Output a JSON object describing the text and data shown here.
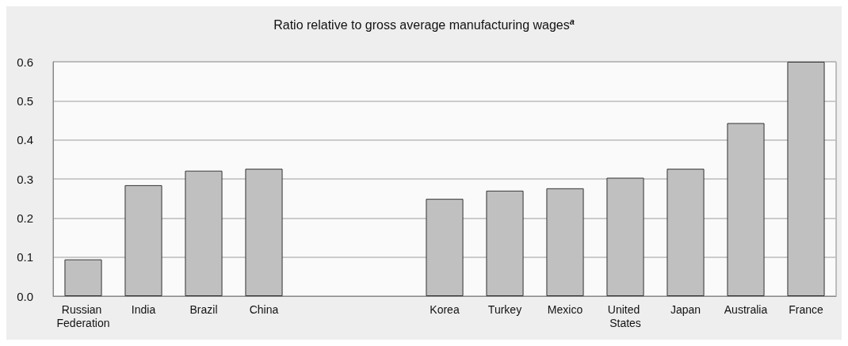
{
  "chart_data": {
    "type": "bar",
    "title": "Ratio relative to gross average manufacturing wages$^{a}$",
    "categories": [
      "Russian Federation",
      "India",
      "Brazil",
      "China",
      null,
      null,
      "Korea",
      "Turkey",
      "Mexico",
      "United States",
      "Japan",
      "Australia",
      "France"
    ],
    "values": [
      0.094,
      0.284,
      0.321,
      0.326,
      null,
      null,
      0.249,
      0.27,
      0.276,
      0.303,
      0.326,
      0.443,
      0.6
    ],
    "color": "#c0c0c0",
    "ylim": [
      0,
      0.6
    ],
    "yticks": [
      {
        "value": 0,
        "label": "0.0"
      },
      0.1,
      0.2,
      0.3,
      0.4,
      0.5,
      0.6
    ],
    "grid": "y"
  }
}
